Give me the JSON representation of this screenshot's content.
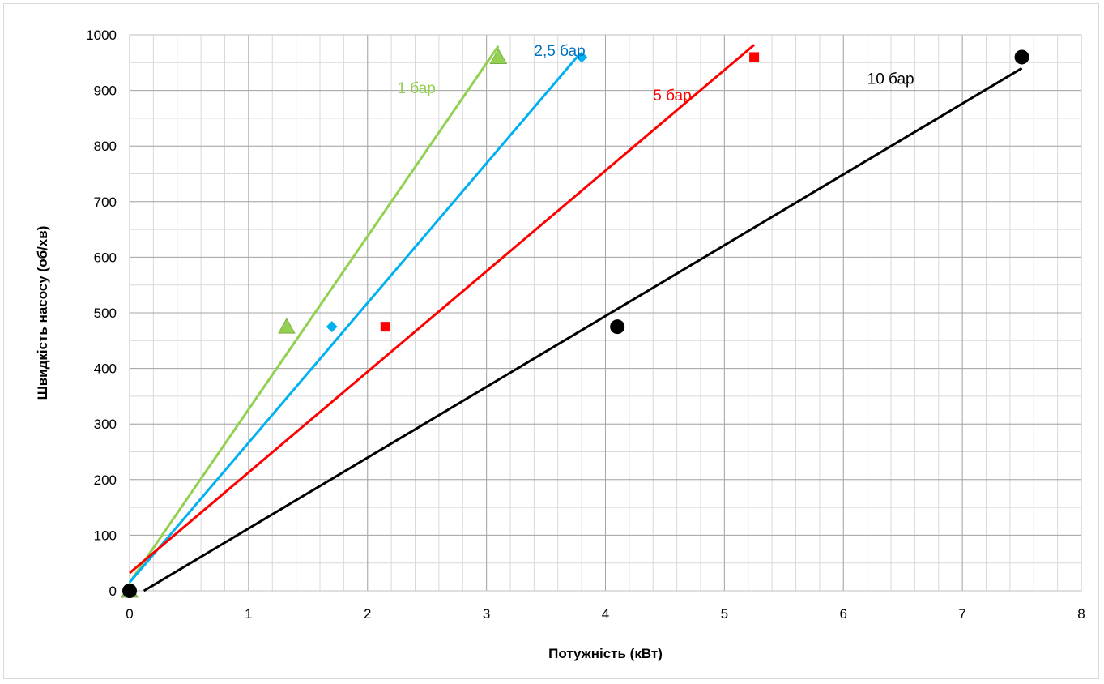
{
  "chart_data": {
    "type": "scatter",
    "title": "",
    "xlabel": "Потужність (кВт)",
    "ylabel": "Швидкість насосу (об/хв)",
    "xlim": [
      0,
      8
    ],
    "ylim": [
      0,
      1000
    ],
    "x_major_ticks": [
      0,
      1,
      2,
      3,
      4,
      5,
      6,
      7,
      8
    ],
    "y_major_ticks": [
      0,
      100,
      200,
      300,
      400,
      500,
      600,
      700,
      800,
      900,
      1000
    ],
    "grid": "major and minor",
    "legend": "none (series labelled directly on the chart)",
    "series": [
      {
        "name": "1 бар",
        "color": "#92D050",
        "marker": "triangle",
        "points": [
          [
            0,
            0
          ],
          [
            1.32,
            475
          ],
          [
            3.1,
            960
          ]
        ],
        "trendline": [
          [
            0,
            15
          ],
          [
            3.1,
            980
          ]
        ]
      },
      {
        "name": "2,5 бар",
        "color": "#00B0F0",
        "marker": "diamond",
        "points": [
          [
            0,
            0
          ],
          [
            1.7,
            475
          ],
          [
            3.8,
            960
          ]
        ],
        "trendline": [
          [
            0,
            15
          ],
          [
            3.78,
            965
          ]
        ]
      },
      {
        "name": "5 бар",
        "color": "#FF0000",
        "marker": "square",
        "points": [
          [
            0,
            0
          ],
          [
            2.15,
            475
          ],
          [
            5.25,
            960
          ]
        ],
        "trendline": [
          [
            0,
            32
          ],
          [
            5.25,
            982
          ]
        ]
      },
      {
        "name": "10 бар",
        "color": "#000000",
        "marker": "circle",
        "points": [
          [
            0,
            0
          ],
          [
            4.1,
            475
          ],
          [
            7.5,
            960
          ]
        ],
        "trendline": [
          [
            0.12,
            0
          ],
          [
            7.5,
            940
          ]
        ]
      }
    ],
    "annotations": [
      {
        "text": "1 бар",
        "x": 2.25,
        "y": 895,
        "color": "#92D050"
      },
      {
        "text": "2,5 бар",
        "x": 3.4,
        "y": 962,
        "color": "#0070C0"
      },
      {
        "text": "5 бар",
        "x": 4.4,
        "y": 882,
        "color": "#FF0000"
      },
      {
        "text": "10 бар",
        "x": 6.2,
        "y": 912,
        "color": "#000000"
      }
    ]
  }
}
